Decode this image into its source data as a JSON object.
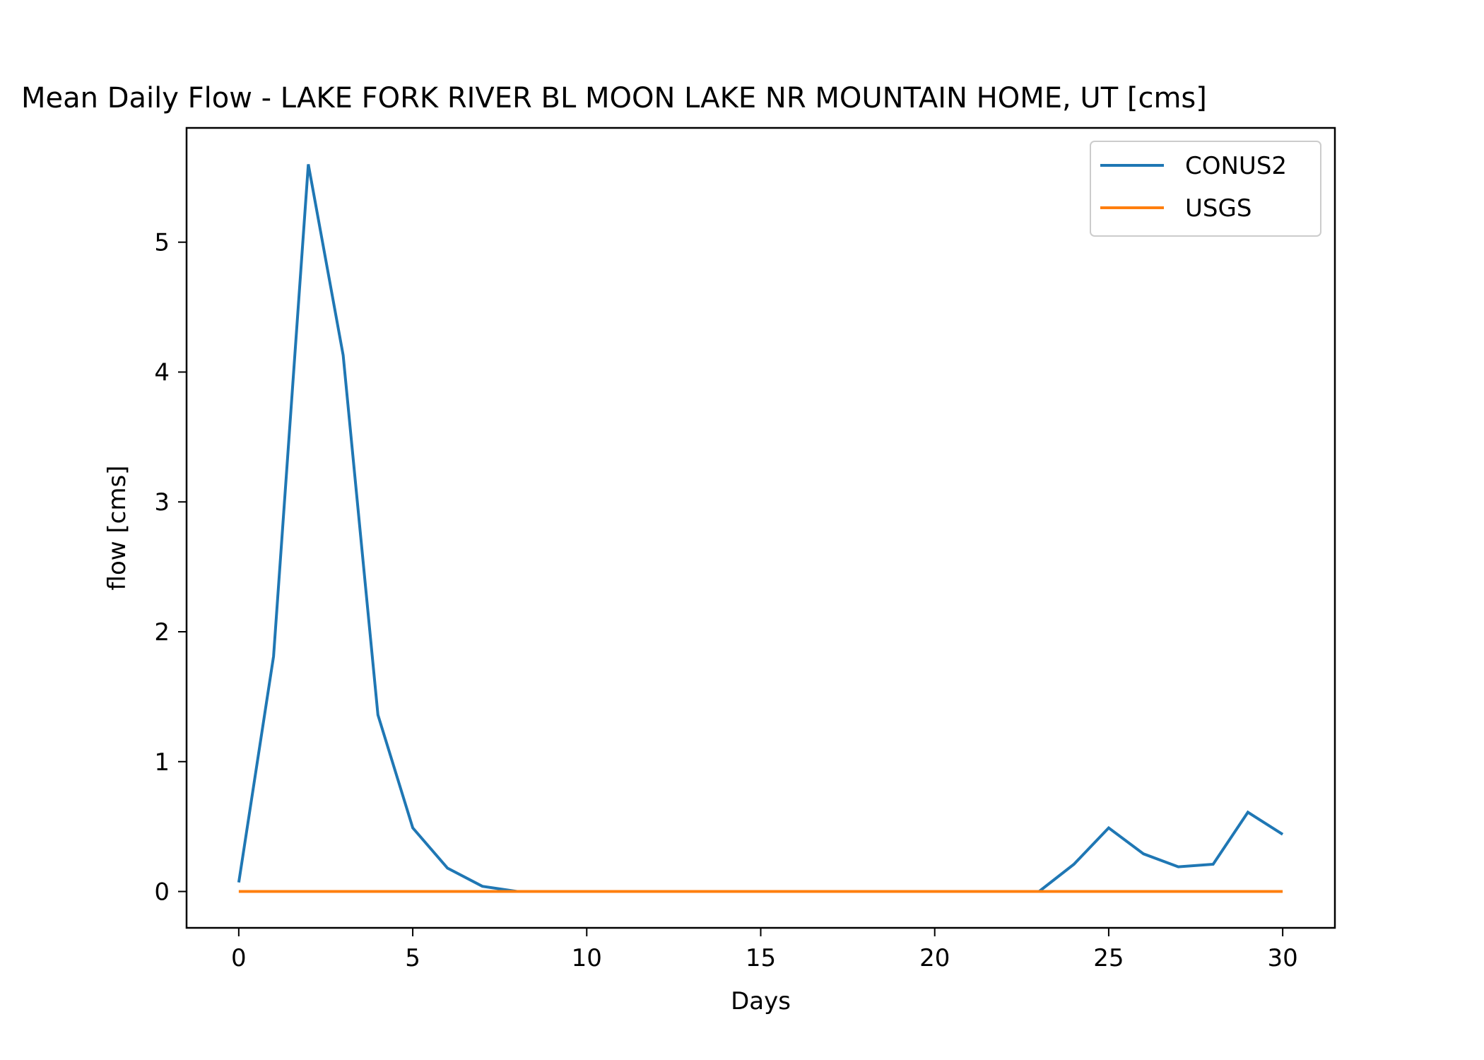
{
  "chart_data": {
    "type": "line",
    "title": "Mean Daily Flow - LAKE FORK RIVER BL MOON LAKE NR MOUNTAIN HOME, UT [cms]",
    "xlabel": "Days",
    "ylabel": "flow [cms]",
    "xlim": [
      -1.5,
      31.5
    ],
    "ylim": [
      -0.28,
      5.88
    ],
    "xticks": [
      0,
      5,
      10,
      15,
      20,
      25,
      30
    ],
    "yticks": [
      0,
      1,
      2,
      3,
      4,
      5
    ],
    "grid": false,
    "legend_position": "top-right",
    "x": [
      0,
      1,
      2,
      3,
      4,
      5,
      6,
      7,
      8,
      9,
      10,
      11,
      12,
      13,
      14,
      15,
      16,
      17,
      18,
      19,
      20,
      21,
      22,
      23,
      24,
      25,
      26,
      27,
      28,
      29,
      30
    ],
    "series": [
      {
        "name": "CONUS2",
        "color": "#1f77b4",
        "values": [
          0.07,
          1.81,
          5.6,
          4.13,
          1.36,
          0.49,
          0.18,
          0.04,
          0.0,
          0.0,
          0.0,
          0.0,
          0.0,
          0.0,
          0.0,
          0.0,
          0.0,
          0.0,
          0.0,
          0.0,
          0.0,
          0.0,
          0.0,
          0.0,
          0.21,
          0.49,
          0.29,
          0.19,
          0.21,
          0.61,
          0.44
        ]
      },
      {
        "name": "USGS",
        "color": "#ff7f0e",
        "values": [
          0,
          0,
          0,
          0,
          0,
          0,
          0,
          0,
          0,
          0,
          0,
          0,
          0,
          0,
          0,
          0,
          0,
          0,
          0,
          0,
          0,
          0,
          0,
          0,
          0,
          0,
          0,
          0,
          0,
          0,
          0
        ]
      }
    ]
  }
}
